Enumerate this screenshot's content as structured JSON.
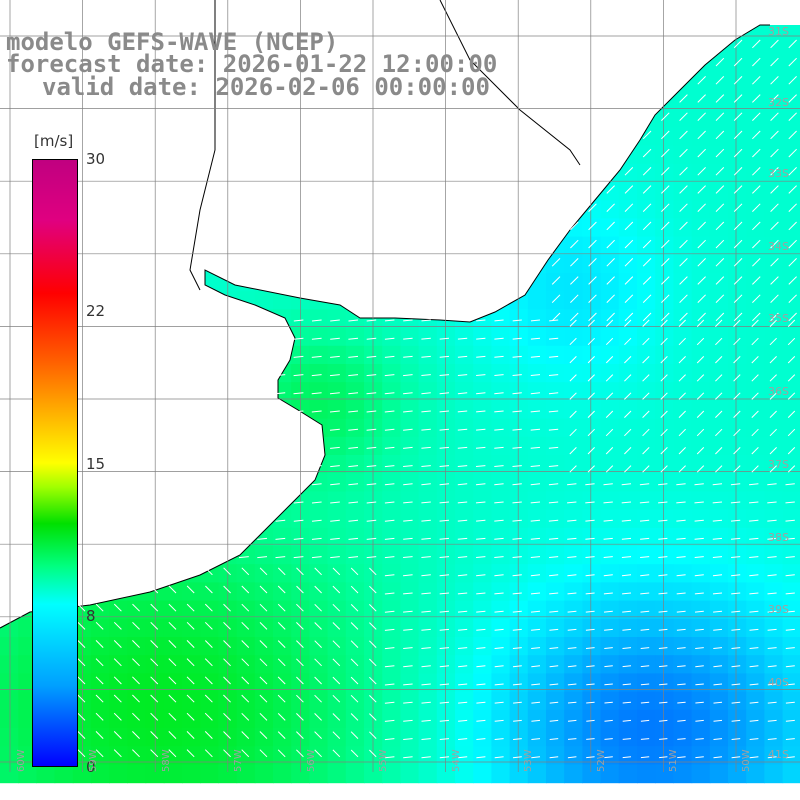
{
  "title": {
    "line1": "modelo GEFS-WAVE (NCEP)",
    "line2": "forecast date: 2026-01-22 12:00:00",
    "line3": "valid date: 2026-02-06 00:00:00"
  },
  "colorbar": {
    "unit": "[m/s]",
    "ticks": [
      "30",
      "22",
      "15",
      "8",
      "0"
    ],
    "colors": [
      "#0000ff",
      "#00a0ff",
      "#00ffff",
      "#00ff80",
      "#00e000",
      "#a0ff00",
      "#ffff00",
      "#ffa000",
      "#ff0000",
      "#c00080"
    ]
  },
  "lat_labels": [
    "31S",
    "32S",
    "33S",
    "34S",
    "35S",
    "36S",
    "37S",
    "38S",
    "39S",
    "40S",
    "41S"
  ],
  "lon_labels": [
    "60W",
    "59W",
    "58W",
    "57W",
    "56W",
    "55W",
    "54W",
    "53W",
    "52W",
    "51W",
    "50W"
  ],
  "map": {
    "land_color": "#ffffff",
    "coast_color": "#000000",
    "grid_color": "#808080",
    "arrow_color": "#ffffff"
  }
}
